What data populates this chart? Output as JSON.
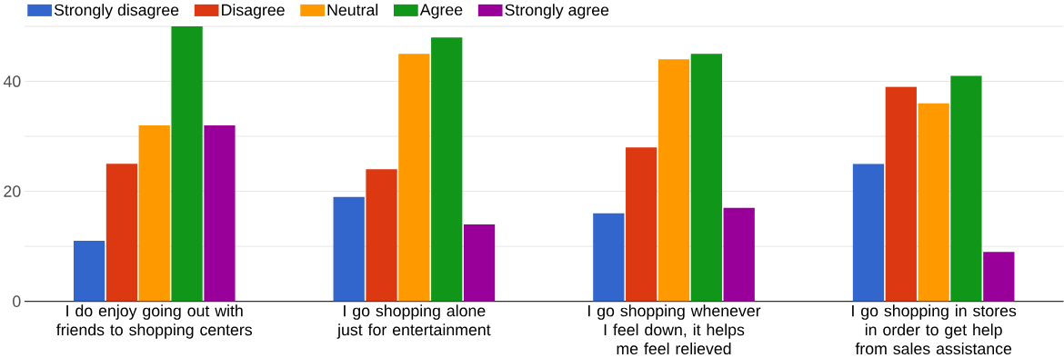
{
  "chart_data": {
    "type": "bar",
    "categories": [
      "I do enjoy going out with friends to shopping centers",
      "I go shopping alone just for entertainment",
      "I go shopping whenever I feel down, it helps me feel relieved",
      "I go shopping in stores in order to get help from sales assistance"
    ],
    "series": [
      {
        "name": "Strongly disagree",
        "color": "#3366cc",
        "values": [
          11,
          19,
          16,
          25
        ]
      },
      {
        "name": "Disagree",
        "color": "#dc3912",
        "values": [
          25,
          24,
          28,
          39
        ]
      },
      {
        "name": "Neutral",
        "color": "#ff9900",
        "values": [
          32,
          45,
          44,
          36
        ]
      },
      {
        "name": "Agree",
        "color": "#109618",
        "values": [
          50,
          48,
          45,
          41
        ]
      },
      {
        "name": "Strongly agree",
        "color": "#990099",
        "values": [
          32,
          14,
          17,
          9
        ]
      }
    ],
    "ylim": [
      0,
      50
    ],
    "yticks": [
      0,
      {
        "value": 10,
        "label": null
      },
      20,
      {
        "value": 30,
        "label": null
      },
      40,
      {
        "value": 50,
        "label": null
      }
    ],
    "grid": "y",
    "legend": "top left"
  }
}
